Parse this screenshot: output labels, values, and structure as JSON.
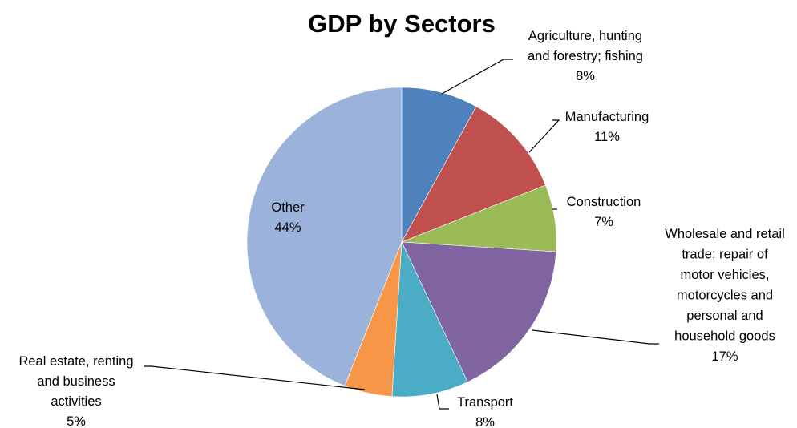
{
  "chart_data": {
    "type": "pie",
    "title": "GDP by Sectors",
    "start_angle_deg": 0,
    "direction": "clockwise",
    "legend": "none",
    "slices": [
      {
        "label_lines": [
          "Agriculture, hunting",
          "and forestry; fishing",
          "8%"
        ],
        "value": 8,
        "color": "#4F81BD"
      },
      {
        "label_lines": [
          "Manufacturing",
          "11%"
        ],
        "value": 11,
        "color": "#C0504D"
      },
      {
        "label_lines": [
          "Construction",
          "7%"
        ],
        "value": 7,
        "color": "#9BBB59"
      },
      {
        "label_lines": [
          "Wholesale and retail",
          "trade; repair of",
          "motor vehicles,",
          "motorcycles and",
          "personal and",
          "household goods",
          "17%"
        ],
        "value": 17,
        "color": "#8064A2"
      },
      {
        "label_lines": [
          "Transport",
          "8%"
        ],
        "value": 8,
        "color": "#4BACC6"
      },
      {
        "label_lines": [
          "Real estate, renting",
          "and business",
          "activities",
          "5%"
        ],
        "value": 5,
        "color": "#F79646"
      },
      {
        "label_lines": [
          "Other",
          "44%"
        ],
        "value": 44,
        "color": "#9BB3DA"
      }
    ]
  }
}
